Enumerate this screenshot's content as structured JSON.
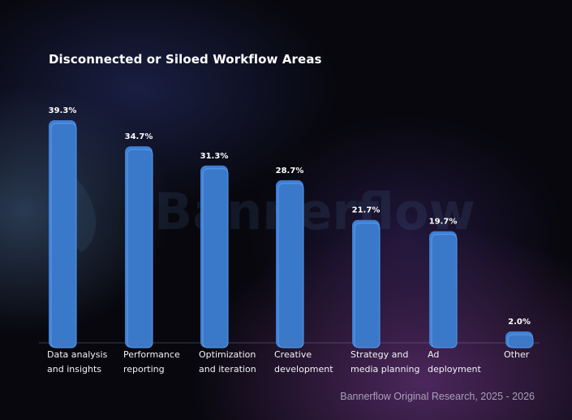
{
  "watermark": "Bannerflow",
  "chart_data": {
    "type": "bar",
    "title": "Disconnected or Siloed Workflow Areas",
    "categories": [
      "Data analysis\nand insights",
      "Performance\nreporting",
      "Optimization\nand iteration",
      "Creative\ndevelopment",
      "Strategy and\nmedia planning",
      "Ad\ndeployment",
      "Other"
    ],
    "values": [
      39.3,
      34.7,
      31.3,
      28.7,
      21.7,
      19.7,
      2.0
    ],
    "value_labels": [
      "39.3%",
      "34.7%",
      "31.3%",
      "28.7%",
      "21.7%",
      "19.7%",
      "2.0%"
    ],
    "unit": "%",
    "ylim": [
      0,
      40
    ],
    "grid": false,
    "bar_color": "#3a78c9",
    "source": "Bannerflow Original Research, 2025 - 2026"
  }
}
